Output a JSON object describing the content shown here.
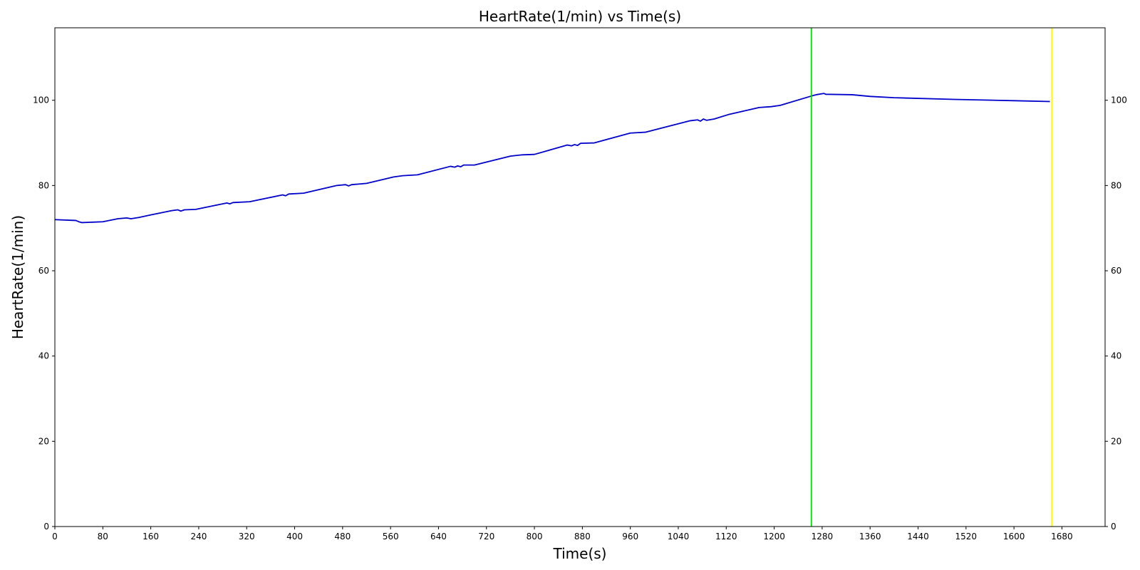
{
  "chart_data": {
    "type": "line",
    "title": "HeartRate(1/min) vs Time(s)",
    "xlabel": "Time(s)",
    "ylabel": "HeartRate(1/min)",
    "xlim": [
      0,
      1752
    ],
    "ylim": [
      0,
      117
    ],
    "xticks": [
      0,
      80,
      160,
      240,
      320,
      400,
      480,
      560,
      640,
      720,
      800,
      880,
      960,
      1040,
      1120,
      1200,
      1280,
      1360,
      1440,
      1520,
      1600,
      1680
    ],
    "yticks": [
      0,
      20,
      40,
      60,
      80,
      100
    ],
    "grid": false,
    "legend": "none",
    "series": [
      {
        "color": "#0000cc",
        "x": [
          0,
          35,
          40,
          45,
          80,
          105,
          120,
          127,
          140,
          160,
          195,
          205,
          210,
          216,
          235,
          287,
          292,
          297,
          325,
          380,
          385,
          390,
          415,
          470,
          485,
          490,
          495,
          520,
          565,
          580,
          605,
          660,
          667,
          672,
          677,
          682,
          700,
          760,
          780,
          800,
          855,
          862,
          867,
          872,
          877,
          900,
          960,
          985,
          1060,
          1072,
          1077,
          1082,
          1087,
          1100,
          1125,
          1175,
          1195,
          1210,
          1260,
          1270,
          1283,
          1286,
          1330,
          1360,
          1400,
          1500,
          1600,
          1660
        ],
        "y": [
          72.0,
          71.8,
          71.5,
          71.3,
          71.5,
          72.2,
          72.4,
          72.2,
          72.5,
          73.1,
          74.1,
          74.3,
          74.0,
          74.3,
          74.4,
          75.9,
          75.7,
          76.0,
          76.2,
          77.8,
          77.6,
          78.0,
          78.2,
          80.0,
          80.2,
          79.9,
          80.2,
          80.5,
          82.0,
          82.3,
          82.5,
          84.5,
          84.3,
          84.6,
          84.4,
          84.8,
          84.8,
          86.9,
          87.2,
          87.3,
          89.5,
          89.3,
          89.6,
          89.4,
          89.9,
          90.0,
          92.3,
          92.5,
          95.2,
          95.4,
          95.1,
          95.6,
          95.3,
          95.6,
          96.7,
          98.3,
          98.5,
          98.8,
          100.9,
          101.3,
          101.6,
          101.4,
          101.3,
          100.9,
          100.6,
          100.2,
          99.9,
          99.7
        ]
      }
    ],
    "vlines": [
      {
        "x": 1262,
        "color": "#00dd00"
      },
      {
        "x": 1663,
        "color": "#ffff00"
      }
    ]
  }
}
